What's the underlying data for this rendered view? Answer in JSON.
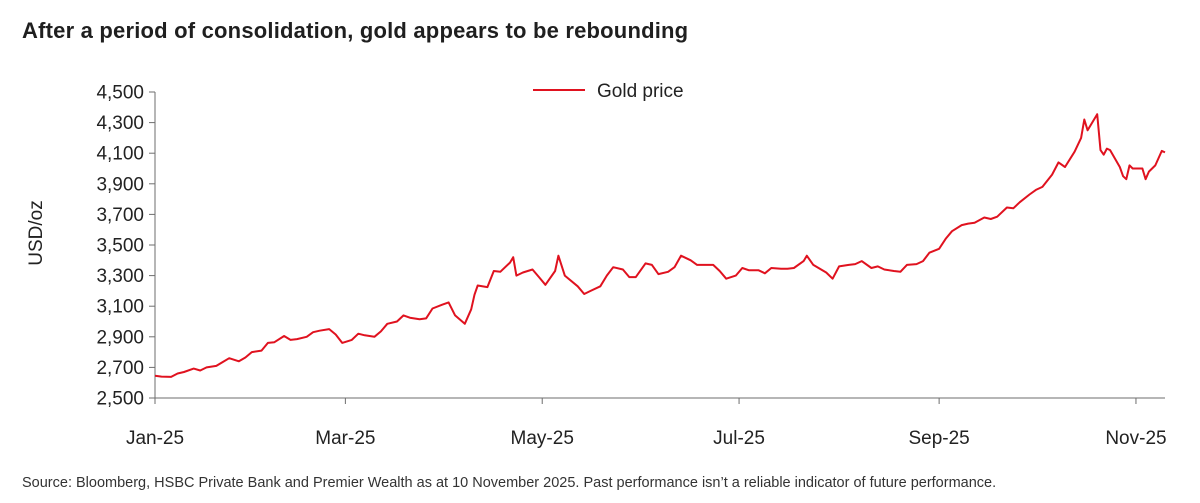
{
  "title": "After a period of consolidation, gold appears to be rebounding",
  "source": "Source: Bloomberg, HSBC Private Bank and Premier Wealth as at 10 November 2025. Past performance isn’t a reliable indicator of future performance.",
  "colors": {
    "series": "#e0121f",
    "axis": "#6e6e6e",
    "text": "#222222"
  },
  "chart_data": {
    "type": "line",
    "ylabel": "USD/oz",
    "xlabel": "",
    "ylim": [
      2500,
      4500
    ],
    "yticks": [
      2500,
      2700,
      2900,
      3100,
      3300,
      3500,
      3700,
      3900,
      4100,
      4300,
      4500
    ],
    "ytick_labels": [
      "2,500",
      "2,700",
      "2,900",
      "3,100",
      "3,300",
      "3,500",
      "3,700",
      "3,900",
      "4,100",
      "4,300",
      "4,500"
    ],
    "xlim": [
      "2025-01-01",
      "2025-11-10"
    ],
    "xticks": [
      "2025-01-01",
      "2025-03-01",
      "2025-05-01",
      "2025-07-01",
      "2025-09-01",
      "2025-11-01"
    ],
    "xtick_labels": [
      "Jan-25",
      "Mar-25",
      "May-25",
      "Jul-25",
      "Sep-25",
      "Nov-25"
    ],
    "legend": {
      "position": "top-center"
    },
    "series": [
      {
        "name": "Gold price",
        "color": "#e0121f",
        "points": [
          [
            "2025-01-01",
            2645
          ],
          [
            "2025-01-03",
            2640
          ],
          [
            "2025-01-06",
            2638
          ],
          [
            "2025-01-08",
            2660
          ],
          [
            "2025-01-10",
            2670
          ],
          [
            "2025-01-13",
            2692
          ],
          [
            "2025-01-15",
            2680
          ],
          [
            "2025-01-17",
            2700
          ],
          [
            "2025-01-20",
            2710
          ],
          [
            "2025-01-22",
            2735
          ],
          [
            "2025-01-24",
            2760
          ],
          [
            "2025-01-27",
            2740
          ],
          [
            "2025-01-29",
            2765
          ],
          [
            "2025-01-31",
            2800
          ],
          [
            "2025-02-03",
            2810
          ],
          [
            "2025-02-05",
            2860
          ],
          [
            "2025-02-07",
            2865
          ],
          [
            "2025-02-10",
            2905
          ],
          [
            "2025-02-12",
            2880
          ],
          [
            "2025-02-14",
            2885
          ],
          [
            "2025-02-17",
            2900
          ],
          [
            "2025-02-19",
            2930
          ],
          [
            "2025-02-21",
            2940
          ],
          [
            "2025-02-24",
            2950
          ],
          [
            "2025-02-26",
            2915
          ],
          [
            "2025-02-28",
            2860
          ],
          [
            "2025-03-03",
            2880
          ],
          [
            "2025-03-05",
            2920
          ],
          [
            "2025-03-07",
            2910
          ],
          [
            "2025-03-10",
            2900
          ],
          [
            "2025-03-12",
            2935
          ],
          [
            "2025-03-14",
            2985
          ],
          [
            "2025-03-17",
            3000
          ],
          [
            "2025-03-19",
            3040
          ],
          [
            "2025-03-21",
            3025
          ],
          [
            "2025-03-24",
            3015
          ],
          [
            "2025-03-26",
            3020
          ],
          [
            "2025-03-28",
            3085
          ],
          [
            "2025-03-31",
            3110
          ],
          [
            "2025-04-02",
            3125
          ],
          [
            "2025-04-04",
            3040
          ],
          [
            "2025-04-07",
            2985
          ],
          [
            "2025-04-09",
            3080
          ],
          [
            "2025-04-10",
            3175
          ],
          [
            "2025-04-11",
            3235
          ],
          [
            "2025-04-14",
            3225
          ],
          [
            "2025-04-16",
            3330
          ],
          [
            "2025-04-18",
            3325
          ],
          [
            "2025-04-21",
            3385
          ],
          [
            "2025-04-22",
            3420
          ],
          [
            "2025-04-23",
            3300
          ],
          [
            "2025-04-25",
            3320
          ],
          [
            "2025-04-28",
            3340
          ],
          [
            "2025-04-30",
            3290
          ],
          [
            "2025-05-02",
            3240
          ],
          [
            "2025-05-05",
            3330
          ],
          [
            "2025-05-06",
            3430
          ],
          [
            "2025-05-08",
            3300
          ],
          [
            "2025-05-12",
            3230
          ],
          [
            "2025-05-14",
            3180
          ],
          [
            "2025-05-16",
            3200
          ],
          [
            "2025-05-19",
            3230
          ],
          [
            "2025-05-21",
            3300
          ],
          [
            "2025-05-23",
            3355
          ],
          [
            "2025-05-26",
            3340
          ],
          [
            "2025-05-28",
            3290
          ],
          [
            "2025-05-30",
            3290
          ],
          [
            "2025-06-02",
            3380
          ],
          [
            "2025-06-04",
            3370
          ],
          [
            "2025-06-06",
            3310
          ],
          [
            "2025-06-09",
            3325
          ],
          [
            "2025-06-11",
            3355
          ],
          [
            "2025-06-13",
            3430
          ],
          [
            "2025-06-16",
            3400
          ],
          [
            "2025-06-18",
            3370
          ],
          [
            "2025-06-20",
            3370
          ],
          [
            "2025-06-23",
            3370
          ],
          [
            "2025-06-25",
            3330
          ],
          [
            "2025-06-27",
            3280
          ],
          [
            "2025-06-30",
            3300
          ],
          [
            "2025-07-02",
            3350
          ],
          [
            "2025-07-04",
            3335
          ],
          [
            "2025-07-07",
            3335
          ],
          [
            "2025-07-09",
            3315
          ],
          [
            "2025-07-11",
            3350
          ],
          [
            "2025-07-14",
            3345
          ],
          [
            "2025-07-16",
            3345
          ],
          [
            "2025-07-18",
            3350
          ],
          [
            "2025-07-21",
            3395
          ],
          [
            "2025-07-22",
            3430
          ],
          [
            "2025-07-24",
            3370
          ],
          [
            "2025-07-28",
            3320
          ],
          [
            "2025-07-30",
            3280
          ],
          [
            "2025-08-01",
            3360
          ],
          [
            "2025-08-04",
            3370
          ],
          [
            "2025-08-06",
            3375
          ],
          [
            "2025-08-08",
            3395
          ],
          [
            "2025-08-11",
            3350
          ],
          [
            "2025-08-13",
            3360
          ],
          [
            "2025-08-15",
            3340
          ],
          [
            "2025-08-18",
            3330
          ],
          [
            "2025-08-20",
            3325
          ],
          [
            "2025-08-22",
            3370
          ],
          [
            "2025-08-25",
            3375
          ],
          [
            "2025-08-27",
            3395
          ],
          [
            "2025-08-29",
            3450
          ],
          [
            "2025-09-01",
            3475
          ],
          [
            "2025-09-03",
            3540
          ],
          [
            "2025-09-05",
            3590
          ],
          [
            "2025-09-08",
            3630
          ],
          [
            "2025-09-10",
            3640
          ],
          [
            "2025-09-12",
            3645
          ],
          [
            "2025-09-15",
            3680
          ],
          [
            "2025-09-17",
            3670
          ],
          [
            "2025-09-19",
            3685
          ],
          [
            "2025-09-22",
            3745
          ],
          [
            "2025-09-24",
            3740
          ],
          [
            "2025-09-26",
            3780
          ],
          [
            "2025-09-29",
            3830
          ],
          [
            "2025-10-01",
            3860
          ],
          [
            "2025-10-03",
            3880
          ],
          [
            "2025-10-06",
            3960
          ],
          [
            "2025-10-08",
            4040
          ],
          [
            "2025-10-10",
            4010
          ],
          [
            "2025-10-13",
            4110
          ],
          [
            "2025-10-15",
            4200
          ],
          [
            "2025-10-16",
            4320
          ],
          [
            "2025-10-17",
            4250
          ],
          [
            "2025-10-20",
            4355
          ],
          [
            "2025-10-21",
            4120
          ],
          [
            "2025-10-22",
            4090
          ],
          [
            "2025-10-23",
            4130
          ],
          [
            "2025-10-24",
            4120
          ],
          [
            "2025-10-27",
            4010
          ],
          [
            "2025-10-28",
            3950
          ],
          [
            "2025-10-29",
            3930
          ],
          [
            "2025-10-30",
            4020
          ],
          [
            "2025-10-31",
            4000
          ],
          [
            "2025-11-03",
            4000
          ],
          [
            "2025-11-04",
            3930
          ],
          [
            "2025-11-05",
            3980
          ],
          [
            "2025-11-06",
            4000
          ],
          [
            "2025-11-07",
            4020
          ],
          [
            "2025-11-09",
            4115
          ],
          [
            "2025-11-10",
            4105
          ]
        ]
      }
    ]
  }
}
